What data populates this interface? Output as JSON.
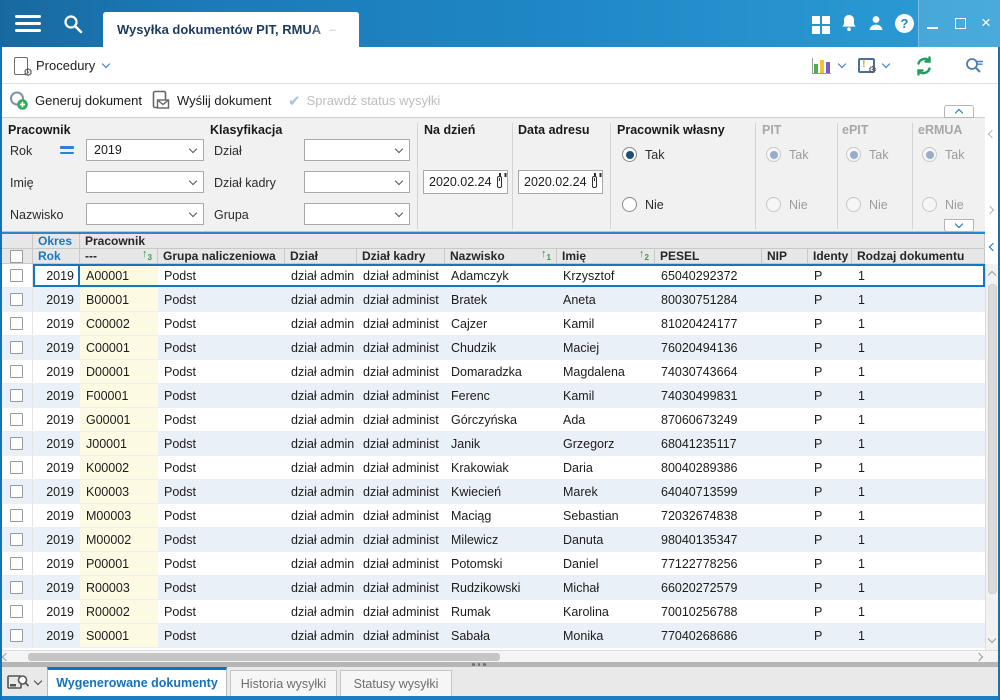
{
  "topbar": {
    "tab_title": "Wysyłka dokumentów PIT, RMUA",
    "tab_suffix": "–"
  },
  "menubar": {
    "procedury_label": "Procedury"
  },
  "actions": {
    "generate_label": "Generuj dokument",
    "send_label": "Wyślij dokument",
    "check_status_label": "Sprawdź status wysyłki"
  },
  "filters": {
    "pracownik": {
      "title": "Pracownik",
      "rok_label": "Rok",
      "rok_value": "2019",
      "imie_label": "Imię",
      "imie_value": "",
      "nazwisko_label": "Nazwisko",
      "nazwisko_value": ""
    },
    "klasyfikacja": {
      "title": "Klasyfikacja",
      "dzial_label": "Dział",
      "dzial_value": "",
      "dzial_kadry_label": "Dział kadry",
      "dzial_kadry_value": "",
      "grupa_label": "Grupa",
      "grupa_value": ""
    },
    "na_dzien": {
      "title": "Na dzień",
      "value": "2020.02.24"
    },
    "data_adresu": {
      "title": "Data adresu",
      "value": "2020.02.24"
    },
    "pracownik_wlasny": {
      "title": "Pracownik własny",
      "option_tak": "Tak",
      "option_nie": "Nie",
      "selected": "Tak"
    },
    "pit": {
      "title": "PIT",
      "option_tak": "Tak",
      "option_nie": "Nie",
      "selected": "Tak",
      "disabled": true
    },
    "epit": {
      "title": "ePIT",
      "option_tak": "Tak",
      "option_nie": "Nie",
      "selected": "Tak",
      "disabled": true
    },
    "ermua": {
      "title": "eRMUA",
      "option_tak": "Tak",
      "option_nie": "Nie",
      "selected": "Tak",
      "disabled": true
    }
  },
  "table": {
    "group_headers": {
      "okres": "Okres",
      "pracownik": "Pracownik"
    },
    "columns": [
      {
        "key": "rok",
        "label": "Rok",
        "accent": true
      },
      {
        "key": "kod",
        "label": "---",
        "sort": "3"
      },
      {
        "key": "grupa",
        "label": "Grupa naliczeniowa"
      },
      {
        "key": "dzial",
        "label": "Dział"
      },
      {
        "key": "dzial_kadry",
        "label": "Dział kadry"
      },
      {
        "key": "nazwisko",
        "label": "Nazwisko",
        "sort": "1"
      },
      {
        "key": "imie",
        "label": "Imię",
        "sort": "2"
      },
      {
        "key": "pesel",
        "label": "PESEL"
      },
      {
        "key": "nip",
        "label": "NIP"
      },
      {
        "key": "identyfikator",
        "label": "Identy"
      },
      {
        "key": "rodzaj",
        "label": "Rodzaj dokumentu"
      }
    ],
    "rows": [
      {
        "rok": "2019",
        "kod": "A00001",
        "grupa": "Podst",
        "dzial": "dział admin",
        "dzial_kadry": "dział administ",
        "nazwisko": "Adamczyk",
        "imie": "Krzysztof",
        "pesel": "65040292372",
        "nip": "",
        "identyfikator": "P",
        "rodzaj": "1"
      },
      {
        "rok": "2019",
        "kod": "B00001",
        "grupa": "Podst",
        "dzial": "dział admin",
        "dzial_kadry": "dział administ",
        "nazwisko": "Bratek",
        "imie": "Aneta",
        "pesel": "80030751284",
        "nip": "",
        "identyfikator": "P",
        "rodzaj": "1"
      },
      {
        "rok": "2019",
        "kod": "C00002",
        "grupa": "Podst",
        "dzial": "dział admin",
        "dzial_kadry": "dział administ",
        "nazwisko": "Cajzer",
        "imie": "Kamil",
        "pesel": "81020424177",
        "nip": "",
        "identyfikator": "P",
        "rodzaj": "1"
      },
      {
        "rok": "2019",
        "kod": "C00001",
        "grupa": "Podst",
        "dzial": "dział admin",
        "dzial_kadry": "dział administ",
        "nazwisko": "Chudzik",
        "imie": "Maciej",
        "pesel": "76020494136",
        "nip": "",
        "identyfikator": "P",
        "rodzaj": "1"
      },
      {
        "rok": "2019",
        "kod": "D00001",
        "grupa": "Podst",
        "dzial": "dział admin",
        "dzial_kadry": "dział administ",
        "nazwisko": "Domaradzka",
        "imie": "Magdalena",
        "pesel": "74030743664",
        "nip": "",
        "identyfikator": "P",
        "rodzaj": "1"
      },
      {
        "rok": "2019",
        "kod": "F00001",
        "grupa": "Podst",
        "dzial": "dział admin",
        "dzial_kadry": "dział administ",
        "nazwisko": "Ferenc",
        "imie": "Kamil",
        "pesel": "74030499831",
        "nip": "",
        "identyfikator": "P",
        "rodzaj": "1"
      },
      {
        "rok": "2019",
        "kod": "G00001",
        "grupa": "Podst",
        "dzial": "dział admin",
        "dzial_kadry": "dział administ",
        "nazwisko": "Górczyńska",
        "imie": "Ada",
        "pesel": "87060673249",
        "nip": "",
        "identyfikator": "P",
        "rodzaj": "1"
      },
      {
        "rok": "2019",
        "kod": "J00001",
        "grupa": "Podst",
        "dzial": "dział admin",
        "dzial_kadry": "dział administ",
        "nazwisko": "Janik",
        "imie": "Grzegorz",
        "pesel": "68041235117",
        "nip": "",
        "identyfikator": "P",
        "rodzaj": "1"
      },
      {
        "rok": "2019",
        "kod": "K00002",
        "grupa": "Podst",
        "dzial": "dział admin",
        "dzial_kadry": "dział administ",
        "nazwisko": "Krakowiak",
        "imie": "Daria",
        "pesel": "80040289386",
        "nip": "",
        "identyfikator": "P",
        "rodzaj": "1"
      },
      {
        "rok": "2019",
        "kod": "K00003",
        "grupa": "Podst",
        "dzial": "dział admin",
        "dzial_kadry": "dział administ",
        "nazwisko": "Kwiecień",
        "imie": "Marek",
        "pesel": "64040713599",
        "nip": "",
        "identyfikator": "P",
        "rodzaj": "1"
      },
      {
        "rok": "2019",
        "kod": "M00003",
        "grupa": "Podst",
        "dzial": "dział admin",
        "dzial_kadry": "dział administ",
        "nazwisko": "Maciąg",
        "imie": "Sebastian",
        "pesel": "72032674838",
        "nip": "",
        "identyfikator": "P",
        "rodzaj": "1"
      },
      {
        "rok": "2019",
        "kod": "M00002",
        "grupa": "Podst",
        "dzial": "dział admin",
        "dzial_kadry": "dział administ",
        "nazwisko": "Milewicz",
        "imie": "Danuta",
        "pesel": "98040135347",
        "nip": "",
        "identyfikator": "P",
        "rodzaj": "1"
      },
      {
        "rok": "2019",
        "kod": "P00001",
        "grupa": "Podst",
        "dzial": "dział admin",
        "dzial_kadry": "dział administ",
        "nazwisko": "Potomski",
        "imie": "Daniel",
        "pesel": "77122778256",
        "nip": "",
        "identyfikator": "P",
        "rodzaj": "1"
      },
      {
        "rok": "2019",
        "kod": "R00003",
        "grupa": "Podst",
        "dzial": "dział admin",
        "dzial_kadry": "dział administ",
        "nazwisko": "Rudzikowski",
        "imie": "Michał",
        "pesel": "66020272579",
        "nip": "",
        "identyfikator": "P",
        "rodzaj": "1"
      },
      {
        "rok": "2019",
        "kod": "R00002",
        "grupa": "Podst",
        "dzial": "dział admin",
        "dzial_kadry": "dział administ",
        "nazwisko": "Rumak",
        "imie": "Karolina",
        "pesel": "70010256788",
        "nip": "",
        "identyfikator": "P",
        "rodzaj": "1"
      },
      {
        "rok": "2019",
        "kod": "S00001",
        "grupa": "Podst",
        "dzial": "dział admin",
        "dzial_kadry": "dział administ",
        "nazwisko": "Sabała",
        "imie": "Monika",
        "pesel": "77040268686",
        "nip": "",
        "identyfikator": "P",
        "rodzaj": "1"
      }
    ]
  },
  "bottom_tabs": {
    "tabs": [
      {
        "label": "Wygenerowane dokumenty",
        "active": true
      },
      {
        "label": "Historia wysyłki",
        "active": false
      },
      {
        "label": "Statusy wysyłki",
        "active": false
      }
    ]
  },
  "colors": {
    "topbar_blue": "#1f87c6",
    "accent_blue": "#1372bd",
    "selection_blue": "#1576c0",
    "radio_selected": "#1f4e79",
    "row_alt": "#e9f0f7",
    "code_column_bg": "#fcfae3",
    "sort_green": "#2f9e4e",
    "refresh_green": "#1fa05a"
  }
}
